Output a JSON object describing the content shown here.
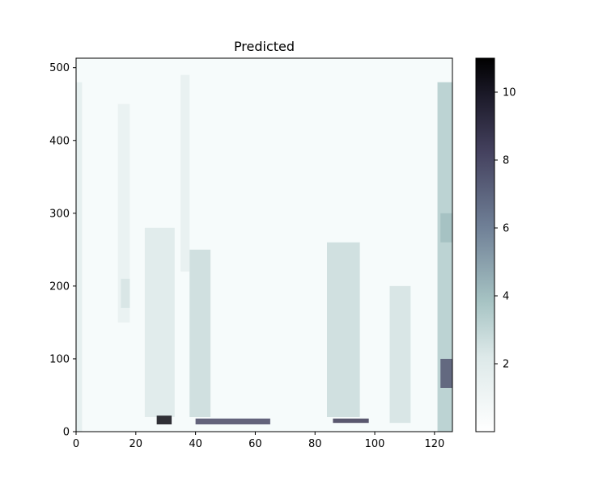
{
  "chart_data": {
    "type": "heatmap",
    "title": "Predicted",
    "xlabel": "",
    "ylabel": "",
    "xlim": [
      0,
      126
    ],
    "ylim": [
      0,
      513
    ],
    "x_ticks": [
      0,
      20,
      40,
      60,
      80,
      100,
      120
    ],
    "y_ticks": [
      0,
      100,
      200,
      300,
      400,
      500
    ],
    "colorbar": {
      "colormap": "bone_r",
      "min": 0,
      "max": 11,
      "ticks": [
        2,
        4,
        6,
        8,
        10
      ]
    },
    "regions": [
      {
        "x": [
          0,
          2
        ],
        "y": [
          0,
          480
        ],
        "value": 1.8
      },
      {
        "x": [
          14,
          18
        ],
        "y": [
          150,
          450
        ],
        "value": 1.5
      },
      {
        "x": [
          15,
          18
        ],
        "y": [
          170,
          210
        ],
        "value": 2.4
      },
      {
        "x": [
          35,
          38
        ],
        "y": [
          220,
          490
        ],
        "value": 1.6
      },
      {
        "x": [
          23,
          33
        ],
        "y": [
          20,
          280
        ],
        "value": 2.2
      },
      {
        "x": [
          27,
          32
        ],
        "y": [
          10,
          22
        ],
        "value": 10.5
      },
      {
        "x": [
          38,
          45
        ],
        "y": [
          20,
          250
        ],
        "value": 2.8
      },
      {
        "x": [
          40,
          65
        ],
        "y": [
          10,
          18
        ],
        "value": 8.0
      },
      {
        "x": [
          84,
          95
        ],
        "y": [
          20,
          260
        ],
        "value": 2.8
      },
      {
        "x": [
          86,
          98
        ],
        "y": [
          12,
          18
        ],
        "value": 8.5
      },
      {
        "x": [
          105,
          112
        ],
        "y": [
          12,
          200
        ],
        "value": 2.5
      },
      {
        "x": [
          121,
          126
        ],
        "y": [
          0,
          480
        ],
        "value": 3.5
      },
      {
        "x": [
          122,
          126
        ],
        "y": [
          60,
          100
        ],
        "value": 7.5
      },
      {
        "x": [
          122,
          126
        ],
        "y": [
          260,
          300
        ],
        "value": 4.0
      }
    ]
  }
}
